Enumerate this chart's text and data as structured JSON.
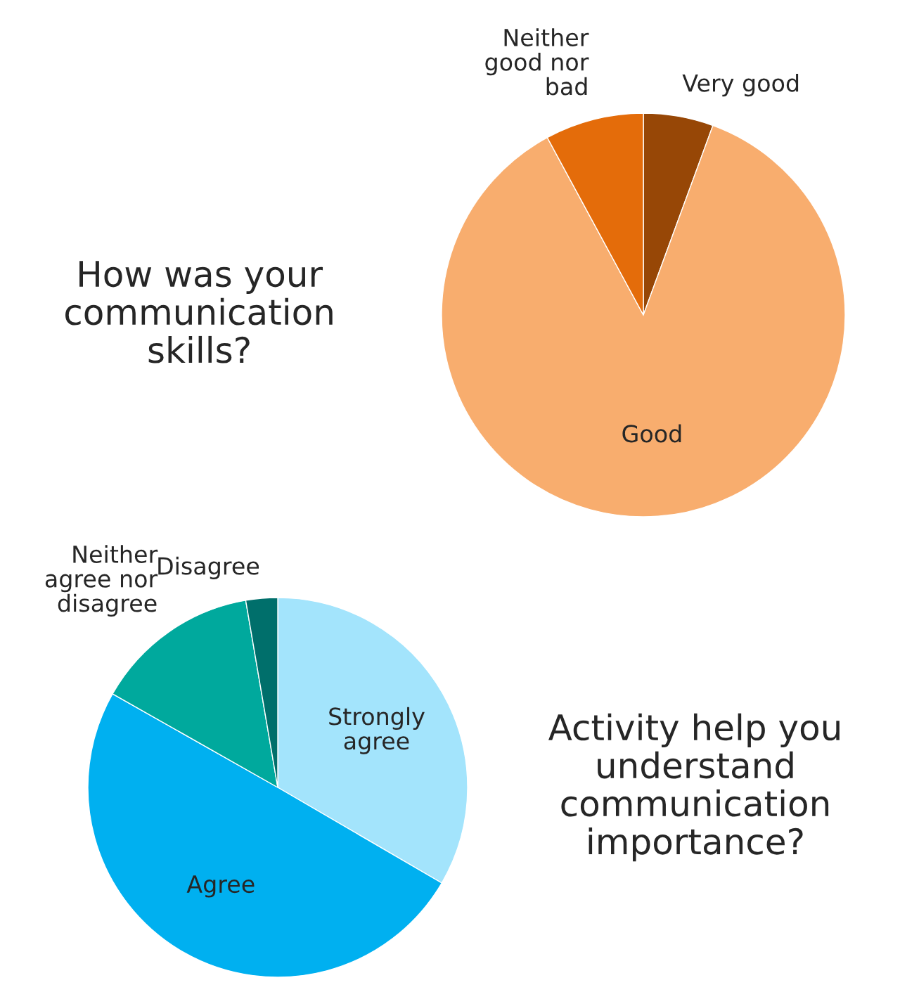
{
  "chart_data": [
    {
      "type": "pie",
      "title": "How was your\ncommunication\nskills?",
      "categories": [
        "Very good",
        "Good",
        "Neither\ngood nor\nbad"
      ],
      "values": [
        5.6,
        86.5,
        7.9
      ],
      "colors": [
        "#974706",
        "#f8ad6e",
        "#e46c0a"
      ]
    },
    {
      "type": "pie",
      "title": "Activity help you\nunderstand\ncommunication\nimportance?",
      "categories": [
        "Strongly\nagree",
        "Agree",
        "Neither\nagree nor\ndisagree",
        "Disagree"
      ],
      "values": [
        33.4,
        49.8,
        14.1,
        2.7
      ],
      "colors": [
        "#a3e4fc",
        "#00b0f0",
        "#00a99d",
        "#006f6b"
      ]
    }
  ]
}
